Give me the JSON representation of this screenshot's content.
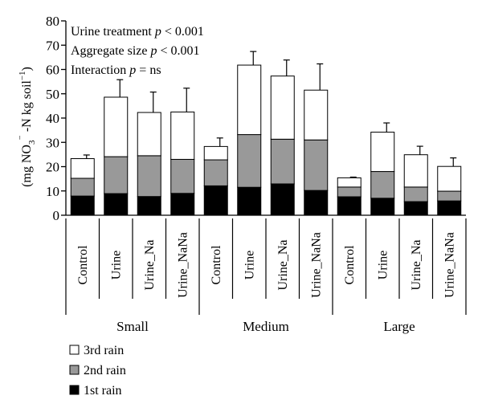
{
  "chart_data": {
    "type": "bar",
    "stacked": true,
    "ylabel": "(mg NO3⁻-N kg soil⁻¹)",
    "ylabel_parts": [
      "(mg NO",
      "3",
      "⁻",
      " -N kg soil",
      "−1",
      ")"
    ],
    "ylim": [
      0,
      80
    ],
    "yticks": [
      0,
      10,
      20,
      30,
      40,
      50,
      60,
      70,
      80
    ],
    "annotations": [
      {
        "prefix": "Urine treatment ",
        "var": "p",
        "suffix": " < 0.001"
      },
      {
        "prefix": "Aggregate size ",
        "var": "p",
        "suffix": " < 0.001"
      },
      {
        "prefix": "Interaction ",
        "var": "p",
        "suffix": " = ns"
      }
    ],
    "groups": [
      {
        "name": "Small",
        "categories": [
          "Control",
          "Urine",
          "Urine_Na",
          "Urine_NaNa"
        ]
      },
      {
        "name": "Medium",
        "categories": [
          "Control",
          "Urine",
          "Urine_Na",
          "Urine_NaNa"
        ]
      },
      {
        "name": "Large",
        "categories": [
          "Control",
          "Urine",
          "Urine_Na",
          "Urine_NaNa"
        ]
      }
    ],
    "series": [
      {
        "name": "1st rain",
        "color": "#000000",
        "values": [
          7.9,
          8.9,
          7.7,
          9.0,
          12.1,
          11.5,
          12.9,
          10.2,
          7.6,
          7.0,
          5.6,
          5.9
        ],
        "errors": [
          1.0,
          1.2,
          0.9,
          3.0,
          1.0,
          0.8,
          1.8,
          1.2,
          0.3,
          0.9,
          0.7,
          0.4
        ]
      },
      {
        "name": "2nd rain",
        "color": "#999999",
        "values": [
          7.3,
          15.2,
          16.8,
          14.0,
          10.7,
          21.7,
          18.4,
          20.8,
          4.0,
          11.0,
          6.0,
          4.0
        ],
        "errors": [
          0.6,
          3.7,
          3.5,
          2.1,
          0.9,
          3.9,
          2.9,
          3.5,
          0.5,
          3.5,
          1.6,
          0.4
        ]
      },
      {
        "name": "3rd rain",
        "color": "#ffffff",
        "values": [
          8.1,
          24.5,
          17.8,
          19.5,
          5.5,
          28.6,
          26.0,
          20.5,
          3.8,
          16.2,
          13.3,
          10.2
        ],
        "errors": [
          1.5,
          7.2,
          8.4,
          9.8,
          3.5,
          5.6,
          6.6,
          10.8,
          0.3,
          3.8,
          3.5,
          3.5
        ]
      }
    ],
    "legend_order": [
      "3rd rain",
      "2nd rain",
      "1st rain"
    ],
    "legend_position": "bottom-left",
    "grid": false
  }
}
